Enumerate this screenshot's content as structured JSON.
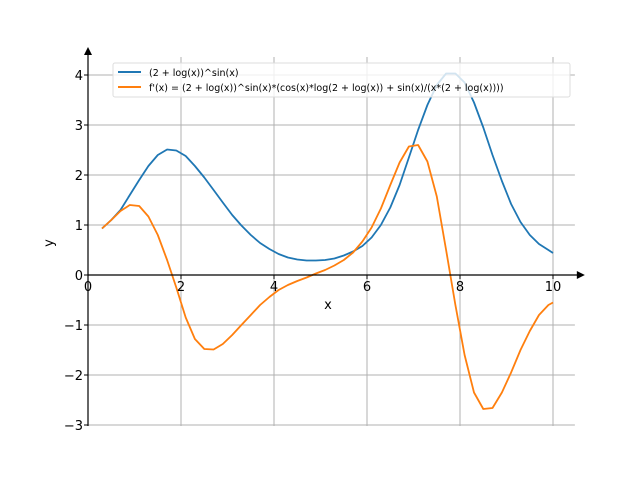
{
  "chart_data": {
    "type": "line",
    "title": "",
    "xlabel": "x",
    "ylabel": "y",
    "xlim": [
      0,
      10.47
    ],
    "ylim": [
      -3.02,
      4.36
    ],
    "grid": true,
    "legend_placement": "top-right",
    "xticks": [
      0,
      2,
      4,
      6,
      8,
      10
    ],
    "yticks": [
      -3,
      -2,
      -1,
      0,
      1,
      2,
      3,
      4
    ],
    "xtick_labels": [
      "0",
      "2",
      "4",
      "6",
      "8",
      "10"
    ],
    "ytick_labels": [
      "−3",
      "−2",
      "−1",
      "0",
      "1",
      "2",
      "3",
      "4"
    ],
    "x": [
      0.3,
      0.5,
      0.7,
      0.9,
      1.1,
      1.3,
      1.5,
      1.7,
      1.9,
      2.1,
      2.3,
      2.5,
      2.7,
      2.9,
      3.1,
      3.3,
      3.5,
      3.7,
      3.9,
      4.1,
      4.3,
      4.5,
      4.7,
      4.9,
      5.1,
      5.3,
      5.5,
      5.7,
      5.9,
      6.1,
      6.3,
      6.5,
      6.7,
      6.9,
      7.1,
      7.3,
      7.5,
      7.7,
      7.9,
      8.1,
      8.3,
      8.5,
      8.7,
      8.9,
      9.1,
      9.3,
      9.5,
      9.7,
      9.9,
      10.0
    ],
    "series": [
      {
        "name": "(2 + log(x))^sin(x)",
        "color": "#1f77b4",
        "values": [
          0.93,
          1.1,
          1.3,
          1.6,
          1.9,
          2.18,
          2.4,
          2.51,
          2.49,
          2.38,
          2.18,
          1.95,
          1.7,
          1.45,
          1.2,
          0.99,
          0.8,
          0.64,
          0.52,
          0.42,
          0.35,
          0.31,
          0.29,
          0.29,
          0.3,
          0.33,
          0.39,
          0.47,
          0.58,
          0.75,
          1.0,
          1.35,
          1.8,
          2.35,
          2.9,
          3.4,
          3.8,
          4.03,
          4.03,
          3.85,
          3.45,
          2.95,
          2.4,
          1.88,
          1.42,
          1.06,
          0.8,
          0.62,
          0.5,
          0.44
        ]
      },
      {
        "name": "f'(x) = (2 + log(x))^sin(x)*(cos(x)*log(2 + log(x)) + sin(x)/(x*(2 + log(x))))",
        "color": "#ff7f0e",
        "values": [
          0.93,
          1.1,
          1.28,
          1.4,
          1.38,
          1.17,
          0.8,
          0.3,
          -0.25,
          -0.85,
          -1.28,
          -1.48,
          -1.49,
          -1.38,
          -1.2,
          -1.0,
          -0.8,
          -0.6,
          -0.44,
          -0.3,
          -0.2,
          -0.12,
          -0.05,
          0.03,
          0.1,
          0.19,
          0.3,
          0.45,
          0.67,
          0.95,
          1.33,
          1.8,
          2.25,
          2.57,
          2.6,
          2.27,
          1.57,
          0.5,
          -0.6,
          -1.6,
          -2.35,
          -2.68,
          -2.66,
          -2.35,
          -1.95,
          -1.5,
          -1.12,
          -0.8,
          -0.6,
          -0.55
        ]
      }
    ]
  }
}
